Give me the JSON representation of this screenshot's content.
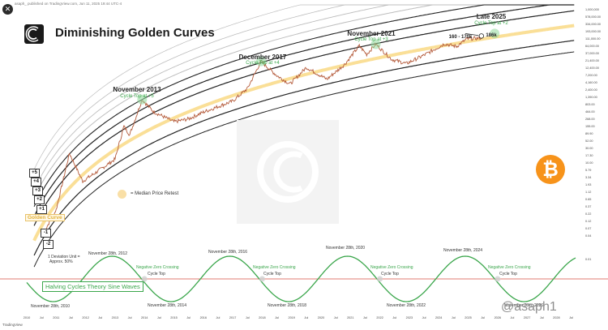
{
  "header": {
    "caption": "asaph_ published on TradingView.com, Jun 11, 2025 19:44 UTC-4",
    "close_label": "✕"
  },
  "title": "Diminishing Golden Curves",
  "annotations": [
    {
      "title": "November 2013",
      "sub": "Cycle Top at +5"
    },
    {
      "title": "December 2017",
      "sub": "Cycle Top at +4"
    },
    {
      "title": "November 2021",
      "sub": "Cycle Top at +3"
    },
    {
      "title": "Late 2025",
      "sub": "Cycle Top at +2"
    }
  ],
  "target_labels": {
    "range": "160 - 170k",
    "current": "186k"
  },
  "deviation_labels": [
    "+5",
    "+4",
    "+3",
    "+2",
    "+1",
    "-1",
    "-2"
  ],
  "golden_curve_label": "Golden Curve",
  "legend_text": "= Median Price Retest",
  "deviation_unit_note": [
    "1 Deviation Unit =",
    "Approx. 50%"
  ],
  "halving_box": "Halving Cycles Theory Sine Waves",
  "sine_labels": {
    "peaks": [
      "November 28th, 2012",
      "November 28th, 2016",
      "November 28th, 2020",
      "November 28th, 2024"
    ],
    "troughs": [
      "November 28th, 2010",
      "November 28th, 2014",
      "November 28th, 2018",
      "November 28th, 2022",
      "November 28th, 2026"
    ],
    "negative_zero": [
      "Negative Zero Crossing",
      "Negative Zero Crossing",
      "Negative Zero Crossing",
      "Negative Zero Crossing"
    ],
    "cycle_top": [
      "Cycle Top",
      "Cycle Top",
      "Cycle Top",
      "Cycle Top"
    ]
  },
  "watermark": "@asaph1",
  "tradingview": "TradingView",
  "colors": {
    "price": "#b45a3a",
    "price_up": "#4caf50",
    "golden": "#f5c542",
    "band": "#222222",
    "band_light": "#bdbdbd",
    "sine": "#3aa64b",
    "zero_line": "#e07b73",
    "highlight": "#8fd99a",
    "bitcoin": "#f7931a"
  },
  "icons": {
    "bitcoin": "bitcoin-icon",
    "logo": "cc-logo-icon",
    "close": "close-icon"
  },
  "chart_data": [
    {
      "type": "line",
      "title": "Diminishing Golden Curves",
      "yscale": "log",
      "y_tick_labels": [
        "1,000,000",
        "578,000.00",
        "334,000.00",
        "193,000.00",
        "111,000.00",
        "64,000.00",
        "37,000.00",
        "21,400.00",
        "12,400.00",
        "7,200.00",
        "4,160.00",
        "2,400.00",
        "1,390.00",
        "803.00",
        "464.00",
        "268.00",
        "155.00",
        "89.90",
        "52.00",
        "30.00",
        "17.30",
        "10.00",
        "5.79",
        "3.34",
        "1.93",
        "1.12",
        "0.65",
        "0.37",
        "0.22",
        "0.12",
        "0.07",
        "0.04"
      ],
      "x_tick_labels": [
        "2010",
        "Jul",
        "2011",
        "Jul",
        "2012",
        "Jul",
        "2013",
        "Jul",
        "2014",
        "Jul",
        "2015",
        "Jul",
        "2016",
        "Jul",
        "2017",
        "Jul",
        "2018",
        "Jul",
        "2019",
        "Jul",
        "2020",
        "Jul",
        "2021",
        "Jul",
        "2022",
        "Jul",
        "2023",
        "Jul",
        "2024",
        "Jul",
        "2025",
        "Jul",
        "2026",
        "Jul",
        "2027",
        "Jul",
        "2028",
        "Jul"
      ],
      "price_points": [
        [
          2010.6,
          0.06
        ],
        [
          2011.0,
          0.3
        ],
        [
          2011.45,
          20
        ],
        [
          2011.9,
          2.5
        ],
        [
          2012.5,
          6
        ],
        [
          2013.0,
          13
        ],
        [
          2013.3,
          150
        ],
        [
          2013.5,
          80
        ],
        [
          2013.92,
          1100
        ],
        [
          2014.3,
          450
        ],
        [
          2015.0,
          210
        ],
        [
          2015.5,
          260
        ],
        [
          2016.0,
          430
        ],
        [
          2016.5,
          650
        ],
        [
          2017.0,
          980
        ],
        [
          2017.5,
          2500
        ],
        [
          2017.96,
          19000
        ],
        [
          2018.5,
          6500
        ],
        [
          2018.95,
          3500
        ],
        [
          2019.5,
          12000
        ],
        [
          2020.2,
          5000
        ],
        [
          2020.8,
          15000
        ],
        [
          2021.3,
          60000
        ],
        [
          2021.55,
          32000
        ],
        [
          2021.86,
          68000
        ],
        [
          2022.4,
          22000
        ],
        [
          2022.9,
          16000
        ],
        [
          2023.5,
          30000
        ],
        [
          2024.2,
          70000
        ],
        [
          2024.6,
          57000
        ],
        [
          2024.95,
          100000
        ],
        [
          2025.45,
          108000
        ]
      ],
      "series": [
        {
          "name": "Golden Curve"
        },
        {
          "name": "+5"
        },
        {
          "name": "+4"
        },
        {
          "name": "+3"
        },
        {
          "name": "+2"
        },
        {
          "name": "+1"
        },
        {
          "name": "-1"
        },
        {
          "name": "-2"
        }
      ],
      "cycle_tops": [
        {
          "date": "November 2013",
          "band": "+5"
        },
        {
          "date": "December 2017",
          "band": "+4"
        },
        {
          "date": "November 2021",
          "band": "+3"
        },
        {
          "date": "Late 2025",
          "band": "+2"
        }
      ]
    },
    {
      "type": "line",
      "title": "Halving Cycles Theory Sine Waves",
      "period_years": 4,
      "peaks": [
        "November 28th, 2012",
        "November 28th, 2016",
        "November 28th, 2020",
        "November 28th, 2024"
      ],
      "troughs": [
        "November 28th, 2010",
        "November 28th, 2014",
        "November 28th, 2018",
        "November 28th, 2022",
        "November 28th, 2026"
      ],
      "y_tick_labels": [
        "0.01"
      ]
    }
  ]
}
